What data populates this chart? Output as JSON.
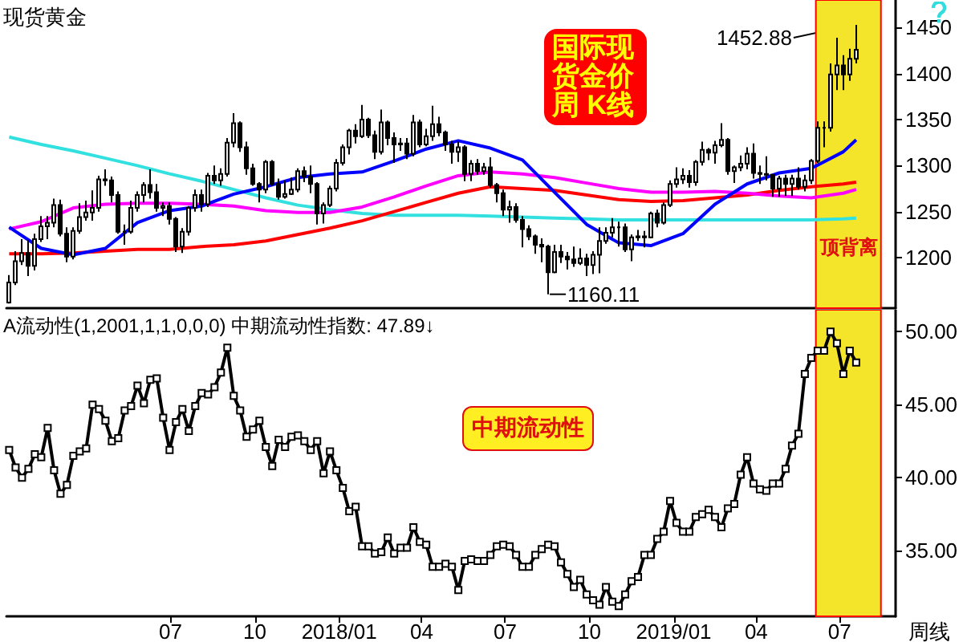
{
  "chart_data": [
    {
      "type": "candlestick",
      "title": "现货黄金",
      "color": "#000000",
      "tick_labels": "y",
      "x": [
        "2017-01-06",
        "2017-01-13",
        "2017-01-20",
        "2017-01-27",
        "2017-02-03",
        "2017-02-10",
        "2017-02-17",
        "2017-02-24",
        "2017-03-03",
        "2017-03-10",
        "2017-03-17",
        "2017-03-24",
        "2017-03-31",
        "2017-04-07",
        "2017-04-14",
        "2017-04-21",
        "2017-04-28",
        "2017-05-05",
        "2017-05-12",
        "2017-05-19",
        "2017-05-26",
        "2017-06-02",
        "2017-06-09",
        "2017-06-16",
        "2017-06-23",
        "2017-06-30",
        "2017-07-07",
        "2017-07-14",
        "2017-07-21",
        "2017-07-28",
        "2017-08-04",
        "2017-08-11",
        "2017-08-18",
        "2017-08-25",
        "2017-09-01",
        "2017-09-08",
        "2017-09-15",
        "2017-09-22",
        "2017-09-29",
        "2017-10-06",
        "2017-10-13",
        "2017-10-20",
        "2017-10-27",
        "2017-11-03",
        "2017-11-10",
        "2017-11-17",
        "2017-11-24",
        "2017-12-01",
        "2017-12-08",
        "2017-12-15",
        "2017-12-22",
        "2017-12-29",
        "2018-01-05",
        "2018-01-12",
        "2018-01-19",
        "2018-01-26",
        "2018-02-02",
        "2018-02-09",
        "2018-02-16",
        "2018-02-23",
        "2018-03-02",
        "2018-03-09",
        "2018-03-16",
        "2018-03-23",
        "2018-03-30",
        "2018-04-06",
        "2018-04-13",
        "2018-04-20",
        "2018-04-27",
        "2018-05-04",
        "2018-05-11",
        "2018-05-18",
        "2018-05-25",
        "2018-06-01",
        "2018-06-08",
        "2018-06-15",
        "2018-06-22",
        "2018-06-29",
        "2018-07-06",
        "2018-07-13",
        "2018-07-20",
        "2018-07-27",
        "2018-08-03",
        "2018-08-10",
        "2018-08-17",
        "2018-08-24",
        "2018-08-31",
        "2018-09-07",
        "2018-09-14",
        "2018-09-21",
        "2018-09-28",
        "2018-10-05",
        "2018-10-12",
        "2018-10-19",
        "2018-10-26",
        "2018-11-02",
        "2018-11-09",
        "2018-11-16",
        "2018-11-23",
        "2018-11-30",
        "2018-12-07",
        "2018-12-14",
        "2018-12-21",
        "2018-12-28",
        "2019-01-04",
        "2019-01-11",
        "2019-01-18",
        "2019-01-25",
        "2019-02-01",
        "2019-02-08",
        "2019-02-15",
        "2019-02-22",
        "2019-03-01",
        "2019-03-08",
        "2019-03-15",
        "2019-03-22",
        "2019-03-29",
        "2019-04-05",
        "2019-04-12",
        "2019-04-19",
        "2019-04-26",
        "2019-05-03",
        "2019-05-10",
        "2019-05-17",
        "2019-05-24",
        "2019-05-31",
        "2019-06-07",
        "2019-06-14",
        "2019-06-21",
        "2019-06-28",
        "2019-07-05",
        "2019-07-12",
        "2019-07-19"
      ],
      "ohlc": [
        [
          1151,
          1181,
          1150,
          1173
        ],
        [
          1173,
          1207,
          1170,
          1196
        ],
        [
          1196,
          1220,
          1192,
          1205
        ],
        [
          1205,
          1219,
          1180,
          1191
        ],
        [
          1191,
          1226,
          1186,
          1220
        ],
        [
          1220,
          1245,
          1217,
          1234
        ],
        [
          1234,
          1245,
          1220,
          1238
        ],
        [
          1238,
          1264,
          1233,
          1257
        ],
        [
          1257,
          1263,
          1223,
          1226
        ],
        [
          1226,
          1233,
          1195,
          1201
        ],
        [
          1201,
          1233,
          1198,
          1229
        ],
        [
          1229,
          1259,
          1226,
          1244
        ],
        [
          1244,
          1262,
          1240,
          1249
        ],
        [
          1249,
          1273,
          1240,
          1254
        ],
        [
          1254,
          1289,
          1250,
          1285
        ],
        [
          1285,
          1296,
          1278,
          1284
        ],
        [
          1284,
          1288,
          1260,
          1268
        ],
        [
          1268,
          1272,
          1226,
          1228
        ],
        [
          1228,
          1236,
          1214,
          1228
        ],
        [
          1228,
          1262,
          1226,
          1254
        ],
        [
          1254,
          1272,
          1250,
          1268
        ],
        [
          1268,
          1282,
          1260,
          1279
        ],
        [
          1279,
          1296,
          1264,
          1271
        ],
        [
          1271,
          1280,
          1250,
          1254
        ],
        [
          1254,
          1260,
          1245,
          1256
        ],
        [
          1256,
          1260,
          1236,
          1242
        ],
        [
          1242,
          1244,
          1206,
          1212
        ],
        [
          1212,
          1232,
          1205,
          1228
        ],
        [
          1228,
          1256,
          1224,
          1254
        ],
        [
          1254,
          1274,
          1250,
          1268
        ],
        [
          1268,
          1274,
          1250,
          1258
        ],
        [
          1258,
          1292,
          1255,
          1289
        ],
        [
          1289,
          1300,
          1280,
          1284
        ],
        [
          1284,
          1297,
          1278,
          1291
        ],
        [
          1291,
          1330,
          1288,
          1325
        ],
        [
          1325,
          1357,
          1320,
          1346
        ],
        [
          1346,
          1348,
          1315,
          1320
        ],
        [
          1320,
          1326,
          1290,
          1297
        ],
        [
          1297,
          1302,
          1278,
          1280
        ],
        [
          1280,
          1282,
          1260,
          1274
        ],
        [
          1274,
          1306,
          1270,
          1304
        ],
        [
          1304,
          1306,
          1278,
          1280
        ],
        [
          1280,
          1286,
          1263,
          1266
        ],
        [
          1266,
          1284,
          1264,
          1269
        ],
        [
          1269,
          1287,
          1268,
          1274
        ],
        [
          1274,
          1297,
          1271,
          1294
        ],
        [
          1294,
          1299,
          1282,
          1288
        ],
        [
          1288,
          1300,
          1270,
          1280
        ],
        [
          1280,
          1282,
          1236,
          1248
        ],
        [
          1248,
          1260,
          1237,
          1257
        ],
        [
          1257,
          1278,
          1255,
          1275
        ],
        [
          1275,
          1307,
          1272,
          1303
        ],
        [
          1303,
          1323,
          1300,
          1320
        ],
        [
          1320,
          1340,
          1312,
          1338
        ],
        [
          1338,
          1345,
          1324,
          1332
        ],
        [
          1332,
          1366,
          1330,
          1350
        ],
        [
          1350,
          1352,
          1330,
          1333
        ],
        [
          1333,
          1338,
          1307,
          1315
        ],
        [
          1315,
          1361,
          1312,
          1347
        ],
        [
          1347,
          1349,
          1322,
          1330
        ],
        [
          1330,
          1336,
          1303,
          1323
        ],
        [
          1323,
          1330,
          1316,
          1324
        ],
        [
          1324,
          1330,
          1307,
          1313
        ],
        [
          1313,
          1355,
          1310,
          1347
        ],
        [
          1347,
          1350,
          1320,
          1323
        ],
        [
          1323,
          1340,
          1321,
          1332
        ],
        [
          1332,
          1365,
          1327,
          1345
        ],
        [
          1345,
          1353,
          1332,
          1336
        ],
        [
          1336,
          1338,
          1316,
          1323
        ],
        [
          1323,
          1327,
          1302,
          1315
        ],
        [
          1315,
          1326,
          1304,
          1320
        ],
        [
          1320,
          1322,
          1283,
          1291
        ],
        [
          1291,
          1306,
          1283,
          1302
        ],
        [
          1302,
          1307,
          1290,
          1294
        ],
        [
          1294,
          1303,
          1290,
          1298
        ],
        [
          1298,
          1309,
          1276,
          1279
        ],
        [
          1279,
          1281,
          1260,
          1270
        ],
        [
          1270,
          1274,
          1245,
          1252
        ],
        [
          1252,
          1262,
          1238,
          1255
        ],
        [
          1255,
          1259,
          1238,
          1241
        ],
        [
          1241,
          1245,
          1211,
          1231
        ],
        [
          1231,
          1235,
          1219,
          1223
        ],
        [
          1223,
          1225,
          1204,
          1214
        ],
        [
          1214,
          1221,
          1195,
          1212
        ],
        [
          1212,
          1214,
          1160.11,
          1184
        ],
        [
          1184,
          1214,
          1183,
          1206
        ],
        [
          1206,
          1214,
          1194,
          1201
        ],
        [
          1201,
          1206,
          1187,
          1198
        ],
        [
          1198,
          1212,
          1190,
          1194
        ],
        [
          1194,
          1210,
          1192,
          1199
        ],
        [
          1199,
          1204,
          1180,
          1192
        ],
        [
          1192,
          1207,
          1182,
          1203
        ],
        [
          1203,
          1233,
          1183,
          1218
        ],
        [
          1218,
          1233,
          1215,
          1227
        ],
        [
          1227,
          1243,
          1222,
          1233
        ],
        [
          1233,
          1239,
          1212,
          1233
        ],
        [
          1233,
          1237,
          1206,
          1209
        ],
        [
          1209,
          1225,
          1196,
          1222
        ],
        [
          1222,
          1230,
          1218,
          1223
        ],
        [
          1223,
          1229,
          1211,
          1222
        ],
        [
          1222,
          1250,
          1221,
          1248
        ],
        [
          1248,
          1252,
          1233,
          1238
        ],
        [
          1238,
          1260,
          1236,
          1257
        ],
        [
          1257,
          1284,
          1255,
          1280
        ],
        [
          1280,
          1298,
          1276,
          1285
        ],
        [
          1285,
          1297,
          1280,
          1289
        ],
        [
          1289,
          1295,
          1276,
          1282
        ],
        [
          1282,
          1306,
          1278,
          1304
        ],
        [
          1304,
          1326,
          1300,
          1317
        ],
        [
          1317,
          1319,
          1306,
          1314
        ],
        [
          1314,
          1327,
          1302,
          1322
        ],
        [
          1322,
          1346,
          1320,
          1328
        ],
        [
          1328,
          1330,
          1290,
          1294
        ],
        [
          1294,
          1300,
          1281,
          1298
        ],
        [
          1298,
          1311,
          1294,
          1302
        ],
        [
          1302,
          1320,
          1296,
          1313
        ],
        [
          1313,
          1324,
          1286,
          1292
        ],
        [
          1292,
          1300,
          1280,
          1291
        ],
        [
          1291,
          1310,
          1284,
          1290
        ],
        [
          1290,
          1291,
          1266,
          1275
        ],
        [
          1275,
          1289,
          1266,
          1286
        ],
        [
          1286,
          1290,
          1267,
          1280
        ],
        [
          1280,
          1290,
          1267,
          1286
        ],
        [
          1286,
          1298,
          1274,
          1277
        ],
        [
          1277,
          1290,
          1272,
          1284
        ],
        [
          1284,
          1307,
          1280,
          1305
        ],
        [
          1305,
          1348,
          1303,
          1341
        ],
        [
          1341,
          1348,
          1320,
          1341
        ],
        [
          1341,
          1411,
          1337,
          1399
        ],
        [
          1399,
          1439,
          1382,
          1409
        ],
        [
          1409,
          1420,
          1382,
          1399
        ],
        [
          1399,
          1427,
          1392,
          1416
        ],
        [
          1416,
          1452.88,
          1411,
          1426
        ]
      ],
      "series": [
        {
          "type": "line",
          "color": "#33e0e0",
          "x": [
            "2017-01-06",
            "2017-02-10",
            "2017-03-17",
            "2017-04-21",
            "2017-05-26",
            "2017-06-30",
            "2017-08-04",
            "2017-09-08",
            "2017-10-13",
            "2017-11-17",
            "2017-12-22",
            "2018-01-26",
            "2018-03-02",
            "2018-04-06",
            "2018-05-11",
            "2018-06-15",
            "2018-07-20",
            "2018-08-24",
            "2018-09-28",
            "2018-11-02",
            "2018-12-07",
            "2019-01-11",
            "2019-02-15",
            "2019-03-22",
            "2019-04-26",
            "2019-05-31",
            "2019-07-05",
            "2019-07-19"
          ],
          "values": [
            1331,
            1323,
            1316,
            1308,
            1300,
            1291,
            1283,
            1274,
            1265,
            1257,
            1252,
            1248,
            1246,
            1246,
            1246,
            1245,
            1244,
            1243,
            1242,
            1241,
            1241,
            1241,
            1241,
            1241,
            1241,
            1241,
            1242,
            1243
          ]
        },
        {
          "type": "line",
          "color": "#ff0000",
          "x": [
            "2017-01-06",
            "2017-02-10",
            "2017-03-17",
            "2017-04-21",
            "2017-05-26",
            "2017-06-30",
            "2017-08-04",
            "2017-09-08",
            "2017-10-13",
            "2017-11-17",
            "2017-12-22",
            "2018-01-26",
            "2018-03-02",
            "2018-04-06",
            "2018-05-11",
            "2018-06-15",
            "2018-07-20",
            "2018-08-24",
            "2018-09-28",
            "2018-11-02",
            "2018-12-07",
            "2019-01-11",
            "2019-02-15",
            "2019-03-22",
            "2019-04-26",
            "2019-05-31",
            "2019-07-05",
            "2019-07-19"
          ],
          "values": [
            1204,
            1204,
            1205,
            1207,
            1209,
            1209,
            1212,
            1214,
            1218,
            1225,
            1232,
            1240,
            1250,
            1260,
            1270,
            1277,
            1275,
            1273,
            1268,
            1263,
            1261,
            1262,
            1265,
            1268,
            1273,
            1277,
            1280,
            1282
          ]
        },
        {
          "type": "line",
          "color": "#ff00ff",
          "x": [
            "2017-01-06",
            "2017-02-10",
            "2017-03-17",
            "2017-04-21",
            "2017-05-26",
            "2017-06-30",
            "2017-08-04",
            "2017-09-08",
            "2017-10-13",
            "2017-11-17",
            "2017-12-22",
            "2018-01-26",
            "2018-03-02",
            "2018-04-06",
            "2018-05-11",
            "2018-06-15",
            "2018-07-20",
            "2018-08-24",
            "2018-09-28",
            "2018-11-02",
            "2018-12-07",
            "2019-01-11",
            "2019-02-15",
            "2019-03-22",
            "2019-04-26",
            "2019-05-31",
            "2019-07-05",
            "2019-07-19"
          ],
          "values": [
            1231,
            1239,
            1254,
            1258,
            1259,
            1259,
            1258,
            1256,
            1251,
            1249,
            1249,
            1255,
            1266,
            1278,
            1289,
            1293,
            1291,
            1287,
            1281,
            1275,
            1271,
            1271,
            1272,
            1270,
            1267,
            1265,
            1270,
            1274
          ]
        },
        {
          "type": "line",
          "color": "#0000ff",
          "x": [
            "2017-01-06",
            "2017-02-10",
            "2017-03-17",
            "2017-04-21",
            "2017-05-26",
            "2017-06-30",
            "2017-08-04",
            "2017-09-08",
            "2017-10-13",
            "2017-11-17",
            "2017-12-22",
            "2018-01-26",
            "2018-03-02",
            "2018-04-06",
            "2018-05-11",
            "2018-06-15",
            "2018-07-20",
            "2018-08-24",
            "2018-09-28",
            "2018-11-02",
            "2018-12-07",
            "2019-01-11",
            "2019-02-15",
            "2019-03-22",
            "2019-04-26",
            "2019-05-31",
            "2019-07-05",
            "2019-07-19"
          ],
          "values": [
            1233,
            1210,
            1203,
            1210,
            1238,
            1251,
            1256,
            1269,
            1277,
            1287,
            1291,
            1293,
            1305,
            1318,
            1327,
            1319,
            1306,
            1271,
            1236,
            1216,
            1213,
            1226,
            1258,
            1280,
            1292,
            1297,
            1315,
            1328
          ]
        }
      ],
      "xlim": [
        "2017-01-03",
        "2019-08-31"
      ],
      "ylim": [
        1145,
        1480
      ],
      "yticks": [
        1200,
        1250,
        1300,
        1350,
        1400,
        1450
      ],
      "bands": [
        {
          "axis": "x",
          "from": "2019-06-05",
          "to": "2019-08-15",
          "color": "#f5e52a"
        }
      ],
      "annotations": [
        "国际现货金价周 K线",
        {
          "text": "1452.88",
          "x": "2019-07-19",
          "y": 1452.88
        },
        {
          "text": "1160.11",
          "x": "2018-08-17",
          "y": 1160.11
        },
        "顶背离"
      ]
    },
    {
      "type": "line",
      "title": "A流动性(1,2001,1,1,0,0,0) 中期流动性指数: 47.89↓",
      "color": "#000000",
      "marker": "square",
      "x": [
        "2017-01-06",
        "2017-01-13",
        "2017-01-20",
        "2017-01-27",
        "2017-02-03",
        "2017-02-10",
        "2017-02-17",
        "2017-02-24",
        "2017-03-03",
        "2017-03-10",
        "2017-03-17",
        "2017-03-24",
        "2017-03-31",
        "2017-04-07",
        "2017-04-14",
        "2017-04-21",
        "2017-04-28",
        "2017-05-05",
        "2017-05-12",
        "2017-05-19",
        "2017-05-26",
        "2017-06-02",
        "2017-06-09",
        "2017-06-16",
        "2017-06-23",
        "2017-06-30",
        "2017-07-07",
        "2017-07-14",
        "2017-07-21",
        "2017-07-28",
        "2017-08-04",
        "2017-08-11",
        "2017-08-18",
        "2017-08-25",
        "2017-09-01",
        "2017-09-08",
        "2017-09-15",
        "2017-09-22",
        "2017-09-29",
        "2017-10-06",
        "2017-10-13",
        "2017-10-20",
        "2017-10-27",
        "2017-11-03",
        "2017-11-10",
        "2017-11-17",
        "2017-11-24",
        "2017-12-01",
        "2017-12-08",
        "2017-12-15",
        "2017-12-22",
        "2017-12-29",
        "2018-01-05",
        "2018-01-12",
        "2018-01-19",
        "2018-01-26",
        "2018-02-02",
        "2018-02-09",
        "2018-02-16",
        "2018-02-23",
        "2018-03-02",
        "2018-03-09",
        "2018-03-16",
        "2018-03-23",
        "2018-03-30",
        "2018-04-06",
        "2018-04-13",
        "2018-04-20",
        "2018-04-27",
        "2018-05-04",
        "2018-05-11",
        "2018-05-18",
        "2018-05-25",
        "2018-06-01",
        "2018-06-08",
        "2018-06-15",
        "2018-06-22",
        "2018-06-29",
        "2018-07-06",
        "2018-07-13",
        "2018-07-20",
        "2018-07-27",
        "2018-08-03",
        "2018-08-10",
        "2018-08-17",
        "2018-08-24",
        "2018-08-31",
        "2018-09-07",
        "2018-09-14",
        "2018-09-21",
        "2018-09-28",
        "2018-10-05",
        "2018-10-12",
        "2018-10-19",
        "2018-10-26",
        "2018-11-02",
        "2018-11-09",
        "2018-11-16",
        "2018-11-23",
        "2018-11-30",
        "2018-12-07",
        "2018-12-14",
        "2018-12-21",
        "2018-12-28",
        "2019-01-04",
        "2019-01-11",
        "2019-01-18",
        "2019-01-25",
        "2019-02-01",
        "2019-02-08",
        "2019-02-15",
        "2019-02-22",
        "2019-03-01",
        "2019-03-08",
        "2019-03-15",
        "2019-03-22",
        "2019-03-29",
        "2019-04-05",
        "2019-04-12",
        "2019-04-19",
        "2019-04-26",
        "2019-05-03",
        "2019-05-10",
        "2019-05-17",
        "2019-05-24",
        "2019-05-31",
        "2019-06-07",
        "2019-06-14",
        "2019-06-21",
        "2019-06-28",
        "2019-07-05",
        "2019-07-12",
        "2019-07-19"
      ],
      "values": [
        41.9,
        40.7,
        40.0,
        40.6,
        41.6,
        41.4,
        43.4,
        40.5,
        38.9,
        39.5,
        41.5,
        41.8,
        42.0,
        45.0,
        44.7,
        43.9,
        42.5,
        42.7,
        44.6,
        44.9,
        46.3,
        45.1,
        46.7,
        46.8,
        44.1,
        41.9,
        43.8,
        44.7,
        43.2,
        44.9,
        45.8,
        45.7,
        46.2,
        47.2,
        48.9,
        45.6,
        44.6,
        42.8,
        43.3,
        43.9,
        42.1,
        40.8,
        42.6,
        42.1,
        42.8,
        42.9,
        42.5,
        41.9,
        42.5,
        40.3,
        41.8,
        40.5,
        39.3,
        37.7,
        38.0,
        35.3,
        35.3,
        34.8,
        34.9,
        35.9,
        34.8,
        35.2,
        35.2,
        36.6,
        35.6,
        35.4,
        33.9,
        33.9,
        34.1,
        33.9,
        32.3,
        34.3,
        34.4,
        34.3,
        34.3,
        34.7,
        35.3,
        35.4,
        35.3,
        34.7,
        33.9,
        33.9,
        34.7,
        35.1,
        35.4,
        35.3,
        34.2,
        33.4,
        32.5,
        33.0,
        32.0,
        31.6,
        31.3,
        32.5,
        31.5,
        31.2,
        32.0,
        32.9,
        33.2,
        34.7,
        34.7,
        35.8,
        36.3,
        38.4,
        36.9,
        36.3,
        36.3,
        37.3,
        37.5,
        37.8,
        37.3,
        36.6,
        37.9,
        38.2,
        40.2,
        41.4,
        39.6,
        39.2,
        39.1,
        39.6,
        39.6,
        40.6,
        42.2,
        43.0,
        47.1,
        48.2,
        48.7,
        48.7,
        50.0,
        49.2,
        47.1,
        48.7,
        47.89
      ],
      "xlim": [
        "2017-01-03",
        "2019-08-31"
      ],
      "xticks": [
        {
          "value": "2017-07-01",
          "label": "07"
        },
        {
          "value": "2017-10-01",
          "label": "10"
        },
        {
          "value": "2018-01-01",
          "label": "2018/01"
        },
        {
          "value": "2018-04-01",
          "label": "04"
        },
        {
          "value": "2018-07-01",
          "label": "07"
        },
        {
          "value": "2018-10-01",
          "label": "10"
        },
        {
          "value": "2019-01-01",
          "label": "2019/01"
        },
        {
          "value": "2019-04-01",
          "label": "04"
        },
        {
          "value": "2019-07-01",
          "label": "07"
        }
      ],
      "ylim": [
        30.5,
        51.5
      ],
      "yticks": [
        {
          "value": 35,
          "label": "35.00"
        },
        {
          "value": 40,
          "label": "40.00"
        },
        {
          "value": 45,
          "label": "45.00"
        },
        {
          "value": 50,
          "label": "50.00"
        }
      ],
      "bands": [
        {
          "axis": "x",
          "from": "2019-06-05",
          "to": "2019-08-15",
          "color": "#f5e52a"
        }
      ],
      "annotations": [
        "中期流动性",
        "周线"
      ]
    }
  ]
}
